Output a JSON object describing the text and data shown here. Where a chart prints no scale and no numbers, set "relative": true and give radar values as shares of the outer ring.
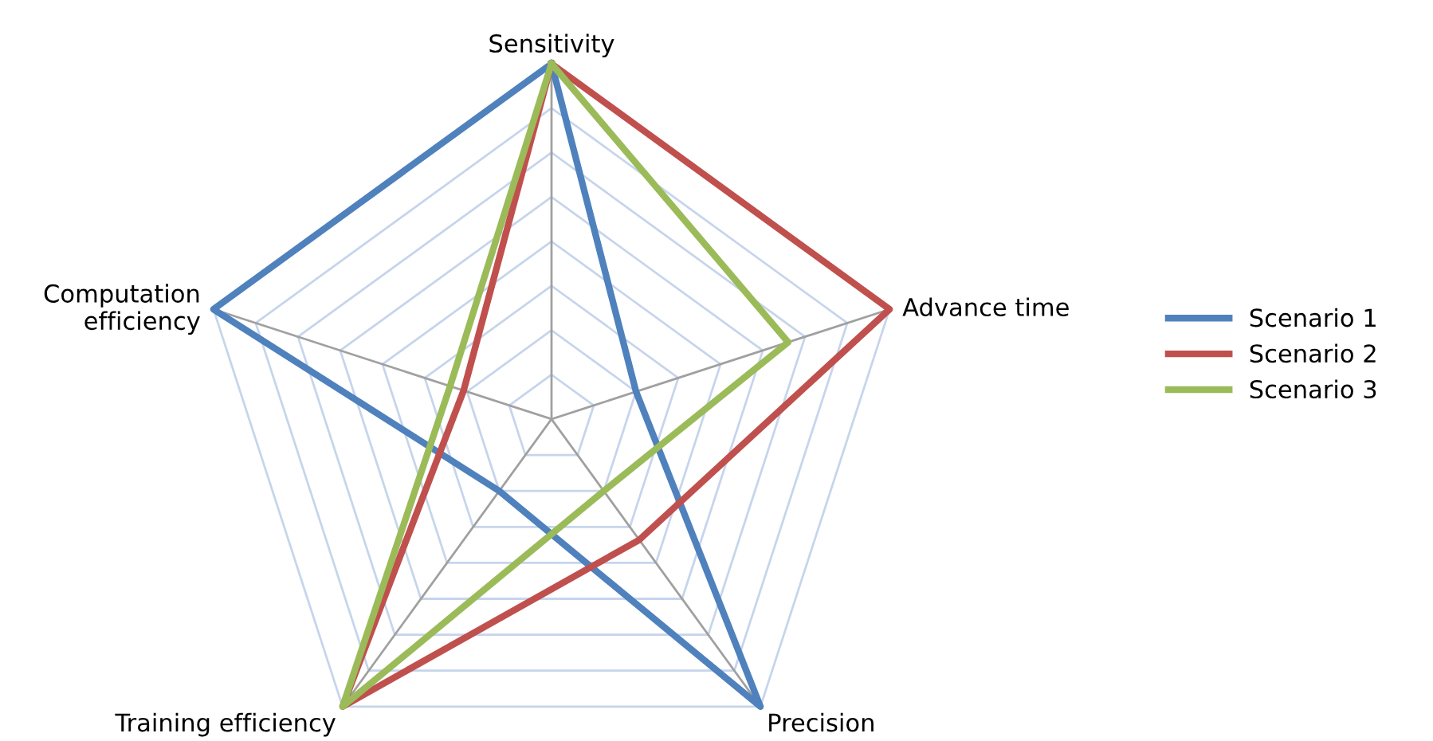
{
  "chart_data": {
    "type": "radar",
    "relative": true,
    "categories": [
      "Sensitivity",
      "Advance time",
      "Precision",
      "Training efficiency",
      "Computation efficiency"
    ],
    "series": [
      {
        "name": "Scenario 1",
        "color": "#4f81bd",
        "values": [
          1,
          0.25,
          1,
          0.25,
          1
        ]
      },
      {
        "name": "Scenario 2",
        "color": "#c0504d",
        "values": [
          1,
          1,
          0.42,
          1,
          0.26
        ]
      },
      {
        "name": "Scenario 3",
        "color": "#9bbb59",
        "values": [
          1,
          0.7,
          0.25,
          1,
          0.3
        ]
      }
    ],
    "legend": "right"
  }
}
